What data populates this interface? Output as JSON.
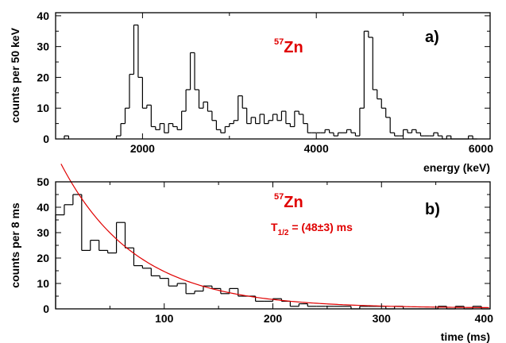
{
  "chart_data": [
    {
      "panel": "a)",
      "type": "bar",
      "style": "step-histogram",
      "annotation": {
        "isotope_mass": "57",
        "isotope_symbol": "Zn",
        "color": "#e00000"
      },
      "xlabel": "energy (keV)",
      "ylabel": "counts per 50 keV",
      "xlim": [
        1000,
        6000
      ],
      "ylim": [
        0,
        41
      ],
      "xticks": [
        2000,
        4000,
        6000
      ],
      "yticks": [
        0,
        10,
        20,
        30,
        40
      ],
      "bin_width": 50,
      "grid": false,
      "line_color": "#000000",
      "x": [
        1100,
        1700,
        1750,
        1800,
        1850,
        1900,
        1950,
        2000,
        2050,
        2100,
        2150,
        2200,
        2250,
        2300,
        2350,
        2400,
        2450,
        2500,
        2550,
        2600,
        2650,
        2700,
        2750,
        2800,
        2850,
        2900,
        2950,
        3000,
        3050,
        3100,
        3150,
        3200,
        3250,
        3300,
        3350,
        3400,
        3450,
        3500,
        3550,
        3600,
        3650,
        3700,
        3750,
        3800,
        3850,
        3900,
        3950,
        4000,
        4050,
        4100,
        4150,
        4200,
        4250,
        4300,
        4350,
        4400,
        4450,
        4500,
        4550,
        4600,
        4650,
        4700,
        4750,
        4800,
        4850,
        4900,
        4950,
        5000,
        5050,
        5100,
        5150,
        5200,
        5250,
        5300,
        5350,
        5400,
        5450,
        5500,
        5550,
        5600,
        5650,
        5700,
        5750,
        5800
      ],
      "values": [
        1,
        1,
        5,
        10,
        21,
        37,
        20,
        10,
        11,
        4,
        3,
        5,
        2,
        5,
        4,
        3,
        9,
        16,
        28,
        16,
        10,
        12,
        9,
        6,
        3,
        2,
        4,
        5,
        6,
        14,
        10,
        5,
        7,
        5,
        8,
        5,
        6,
        8,
        6,
        9,
        5,
        4,
        9,
        8,
        5,
        2,
        2,
        2,
        2,
        3,
        2,
        1,
        2,
        2,
        3,
        2,
        1,
        10,
        35,
        33,
        16,
        13,
        10,
        7,
        2,
        1,
        1,
        3,
        2,
        3,
        2,
        1,
        1,
        1,
        2,
        1,
        0,
        1,
        0,
        0,
        0,
        0,
        1,
        0
      ]
    },
    {
      "panel": "b)",
      "type": "bar",
      "style": "step-histogram",
      "annotation": {
        "isotope_mass": "57",
        "isotope_symbol": "Zn",
        "color": "#e00000"
      },
      "halflife": {
        "symbol": "T",
        "subscript": "1/2",
        "text": " = (48±3) ms",
        "value_ms": 48,
        "error_ms": 3
      },
      "xlabel": "time (ms)",
      "ylabel": "counts per 8 ms",
      "xlim": [
        0,
        400
      ],
      "ylim": [
        0,
        50
      ],
      "xticks": [
        100,
        200,
        300,
        400
      ],
      "yticks": [
        0,
        10,
        20,
        30,
        40,
        50
      ],
      "bin_width": 8,
      "grid": false,
      "line_color": "#000000",
      "fit": {
        "type": "exponential",
        "halflife_ms": 48,
        "amplitude": 61,
        "background": 0.3,
        "x_start": 5,
        "x_end": 400,
        "color": "#e00000"
      },
      "x": [
        0,
        8,
        16,
        24,
        32,
        40,
        48,
        56,
        64,
        72,
        80,
        88,
        96,
        104,
        112,
        120,
        128,
        136,
        144,
        152,
        160,
        168,
        176,
        184,
        192,
        200,
        208,
        216,
        224,
        232,
        240,
        248,
        256,
        264,
        272,
        280,
        288,
        296,
        304,
        312,
        320,
        328,
        336,
        344,
        352,
        360,
        368,
        376,
        384,
        392
      ],
      "values": [
        37,
        41,
        45,
        23,
        27,
        23,
        22,
        34,
        24,
        17,
        16,
        13,
        12,
        9,
        10,
        6,
        7,
        9,
        8,
        6,
        8,
        5,
        5,
        3,
        3,
        4,
        3,
        1,
        2,
        1,
        1,
        1,
        1,
        1,
        0,
        1,
        1,
        1,
        0,
        1,
        0,
        0,
        0,
        0,
        1,
        0,
        1,
        0,
        1,
        0
      ]
    }
  ]
}
